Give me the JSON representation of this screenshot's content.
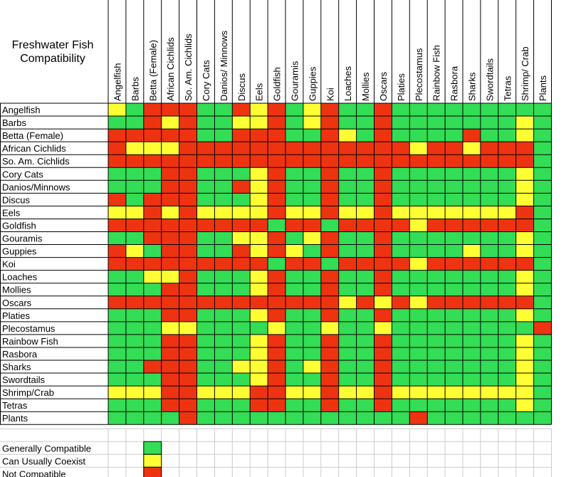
{
  "title_lines": [
    "Freshwater Fish",
    "Compatibility"
  ],
  "colors": {
    "G": "#33dd55",
    "Y": "#ffff33",
    "R": "#ee3311",
    "grid": "#000000",
    "empty_grid": "#cccccc"
  },
  "chart_data": {
    "type": "heatmap",
    "title": "Freshwater Fish Compatibility",
    "columns": [
      "Angelfish",
      "Barbs",
      "Betta (Female)",
      "African Cichlids",
      "So. Am. Cichlids",
      "Cory Cats",
      "Danios/ Minnows",
      "Discus",
      "Eels",
      "Goldfish",
      "Gouramis",
      "Guppies",
      "Koi",
      "Loaches",
      "Mollies",
      "Oscars",
      "Platies",
      "Plecostamus",
      "Rainbow Fish",
      "Rasbora",
      "Sharks",
      "Swordtails",
      "Tetras",
      "Shrimp/ Crab",
      "Plants"
    ],
    "rows": [
      "Angelfish",
      "Barbs",
      "Betta (Female)",
      "African Cichlids",
      "So. Am. Cichlids",
      "Cory Cats",
      "Danios/Minnows",
      "Discus",
      "Eels",
      "Goldfish",
      "Gouramis",
      "Guppies",
      "Koi",
      "Loaches",
      "Mollies",
      "Oscars",
      "Platies",
      "Plecostamus",
      "Rainbow Fish",
      "Rasbora",
      "Sharks",
      "Swordtails",
      "Shrimp/Crab",
      "Tetras",
      "Plants"
    ],
    "values": [
      "YGRRRGGRYRGYRGGRGGGGGGGGG",
      "GGRYRGGYYRGYRGGRGGGGGGGYG",
      "RRRRRGGRRRGGRYGRGGGGRGGYG",
      "RYYYRRRRRRRRRRRRRYRRYRRRG",
      "RRRRRRRRRRRRRRRRRRRRRRRRG",
      "GGGRRGGGYRGGRGGRGGGGGGGYG",
      "GGGRRGGRYRGGRGGRGGGGGGGYG",
      "RGRRRGGGYRGGRGGRGGGGGGGYG",
      "YYRYRYYYYRYYRYYRYYYYYYYRG",
      "RRRRRRRRRGRRGRRRRYRRRRRRG",
      "GGRRRGGYYRGYRGGRGGGGGGGYG",
      "RYGRRGGRYRYGRGGRGGGGYGGYG",
      "RRRRRRRRRGRRGRRRRYRRRRRRG",
      "GGYYRGGGYRGGRGGRGGGGGGGYG",
      "GGGRRGGGYRGGRGGRGGGGGGGYG",
      "RRRRRRRRRRRRRYRYRYRRRRRRG",
      "GGGRRGGGYRGGRGGRGGGGGGGYG",
      "GGGYYGGGGYGGYGGYGGGGGGGGR",
      "GGGRRGGGYRGGRGGRGGGGGGGYG",
      "GGGRRGGGYRGGRGGRGGGGGGGYG",
      "GGRRRGGYYRGYRGGRGGGGGGGYG",
      "GGGRRGGGYRGGRGGRGGGGGGGYG",
      "YYYRRYYYRRYYRYYRYYYYYYYYG",
      "GGGRRGGGRRGGRGGRGGGGGGGYG",
      "GGGGRGGGGGGGGGGGGRGGGGGGG"
    ],
    "legend": [
      {
        "key": "G",
        "label": "Generally Compatible"
      },
      {
        "key": "Y",
        "label": "Can Usually Coexist"
      },
      {
        "key": "R",
        "label": "Not Compatible"
      }
    ]
  }
}
